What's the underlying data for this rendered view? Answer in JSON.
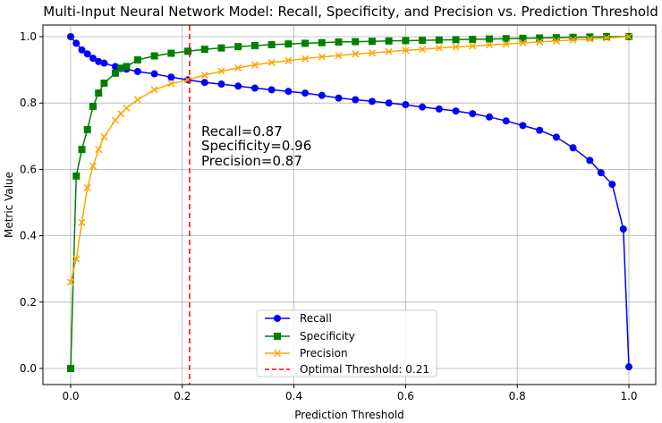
{
  "chart_data": {
    "type": "line",
    "title": "Multi-Input Neural Network Model: Recall, Specificity, and Precision vs. Prediction Threshold",
    "xlabel": "Prediction Threshold",
    "ylabel": "Metric Value",
    "xlim": [
      -0.05,
      1.05
    ],
    "ylim": [
      -0.05,
      1.05
    ],
    "xticks": [
      0.0,
      0.2,
      0.4,
      0.6,
      0.8,
      1.0
    ],
    "yticks": [
      0.0,
      0.2,
      0.4,
      0.6,
      0.8,
      1.0
    ],
    "xtick_labels": [
      "0.0",
      "0.2",
      "0.4",
      "0.6",
      "0.8",
      "1.0"
    ],
    "ytick_labels": [
      "0.0",
      "0.2",
      "0.4",
      "0.6",
      "0.8",
      "1.0"
    ],
    "grid": true,
    "legend_position": "bottom-center",
    "series": [
      {
        "name": "Recall",
        "color": "#0000ff",
        "marker": "circle",
        "x": [
          0.0,
          0.01,
          0.02,
          0.03,
          0.04,
          0.05,
          0.06,
          0.08,
          0.09,
          0.1,
          0.12,
          0.15,
          0.18,
          0.21,
          0.24,
          0.27,
          0.3,
          0.33,
          0.36,
          0.39,
          0.42,
          0.45,
          0.48,
          0.51,
          0.54,
          0.57,
          0.6,
          0.63,
          0.66,
          0.69,
          0.72,
          0.75,
          0.78,
          0.81,
          0.84,
          0.87,
          0.9,
          0.93,
          0.95,
          0.97,
          0.99,
          1.0
        ],
        "y": [
          1.0,
          0.98,
          0.96,
          0.948,
          0.935,
          0.925,
          0.92,
          0.91,
          0.904,
          0.902,
          0.895,
          0.888,
          0.878,
          0.87,
          0.862,
          0.857,
          0.851,
          0.845,
          0.84,
          0.835,
          0.83,
          0.823,
          0.815,
          0.81,
          0.805,
          0.8,
          0.795,
          0.788,
          0.782,
          0.776,
          0.768,
          0.758,
          0.746,
          0.732,
          0.718,
          0.697,
          0.665,
          0.627,
          0.59,
          0.555,
          0.42,
          0.005
        ]
      },
      {
        "name": "Specificity",
        "color": "#008000",
        "marker": "square",
        "x": [
          0.0,
          0.01,
          0.02,
          0.03,
          0.04,
          0.05,
          0.06,
          0.08,
          0.09,
          0.1,
          0.12,
          0.15,
          0.18,
          0.21,
          0.24,
          0.27,
          0.3,
          0.33,
          0.36,
          0.39,
          0.42,
          0.45,
          0.48,
          0.51,
          0.54,
          0.57,
          0.6,
          0.63,
          0.66,
          0.69,
          0.72,
          0.75,
          0.78,
          0.81,
          0.84,
          0.87,
          0.9,
          0.93,
          0.96,
          1.0
        ],
        "y": [
          0.0,
          0.58,
          0.66,
          0.72,
          0.79,
          0.83,
          0.86,
          0.89,
          0.905,
          0.91,
          0.93,
          0.942,
          0.95,
          0.956,
          0.962,
          0.966,
          0.97,
          0.973,
          0.976,
          0.978,
          0.98,
          0.982,
          0.984,
          0.985,
          0.986,
          0.987,
          0.988,
          0.989,
          0.99,
          0.991,
          0.992,
          0.993,
          0.994,
          0.995,
          0.996,
          0.997,
          0.998,
          0.999,
          1.0,
          1.0
        ]
      },
      {
        "name": "Precision",
        "color": "#ffa500",
        "marker": "x",
        "x": [
          0.0,
          0.01,
          0.02,
          0.03,
          0.04,
          0.05,
          0.06,
          0.08,
          0.09,
          0.1,
          0.12,
          0.15,
          0.18,
          0.21,
          0.24,
          0.27,
          0.3,
          0.33,
          0.36,
          0.39,
          0.42,
          0.45,
          0.48,
          0.51,
          0.54,
          0.57,
          0.6,
          0.63,
          0.66,
          0.69,
          0.72,
          0.75,
          0.78,
          0.81,
          0.84,
          0.87,
          0.9,
          0.93,
          0.96,
          1.0
        ],
        "y": [
          0.26,
          0.33,
          0.44,
          0.545,
          0.61,
          0.66,
          0.698,
          0.748,
          0.768,
          0.785,
          0.81,
          0.84,
          0.858,
          0.87,
          0.884,
          0.896,
          0.906,
          0.915,
          0.922,
          0.928,
          0.934,
          0.939,
          0.943,
          0.948,
          0.951,
          0.955,
          0.959,
          0.962,
          0.966,
          0.969,
          0.972,
          0.975,
          0.978,
          0.981,
          0.984,
          0.987,
          0.99,
          0.993,
          0.996,
          1.0
        ]
      }
    ],
    "optimal_threshold": {
      "name": "Optimal Threshold: 0.21",
      "x": 0.213,
      "color": "#ff0000"
    },
    "annotation_lines": [
      "Recall=0.87",
      "Specificity=0.96",
      "Precision=0.87"
    ]
  }
}
